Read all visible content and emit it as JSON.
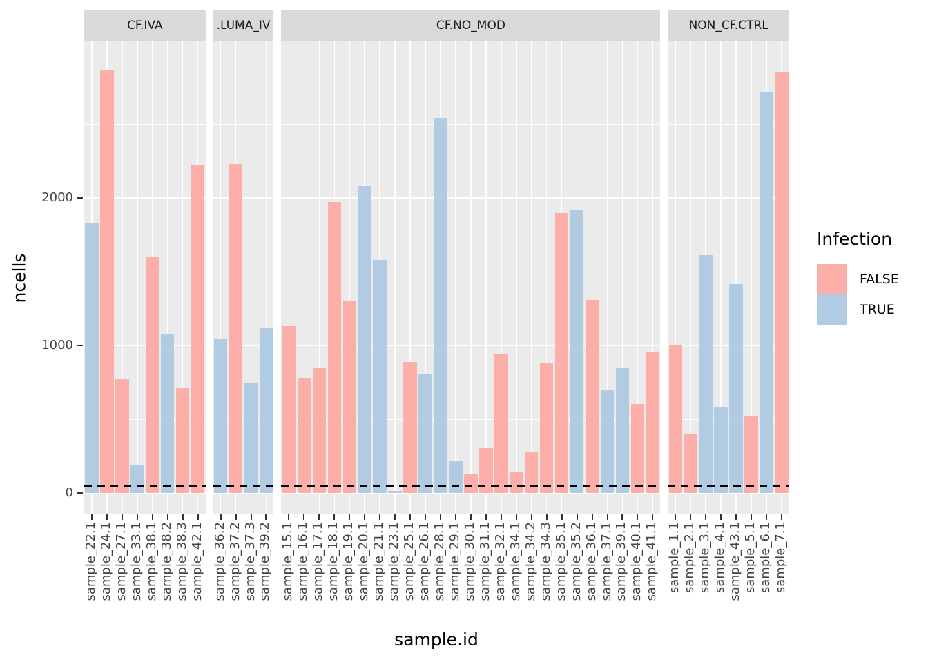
{
  "legend": {
    "title": "Infection",
    "entries": [
      {
        "label": "FALSE",
        "color": "#FBAFA8"
      },
      {
        "label": "TRUE",
        "color": "#B1CBE2"
      }
    ]
  },
  "colors": {
    "false_bar": "#FBAFA8",
    "true_bar": "#B1CBE2",
    "panel_bg": "#EBEBEB",
    "strip_bg": "#D9D9D9",
    "grid": "#FFFFFF",
    "axis_text": "#444444",
    "threshold_line": "#000000"
  },
  "chart_data": {
    "type": "bar",
    "title": "",
    "xlabel": "sample.id",
    "ylabel": "ncells",
    "yticks": [
      0,
      1000,
      2000
    ],
    "minor_gridlines": [
      500,
      1500,
      2500
    ],
    "ylim": [
      -140,
      3065
    ],
    "threshold_dashed_line_y": 50,
    "grid": true,
    "legend_position": "right",
    "legend_title": "Infection",
    "facets": [
      {
        "label": "CF.IVA",
        "bars": [
          {
            "sample": "sample_22.1",
            "ncells": 1830,
            "infection": "TRUE"
          },
          {
            "sample": "sample_24.1",
            "ncells": 2870,
            "infection": "FALSE"
          },
          {
            "sample": "sample_27.1",
            "ncells": 770,
            "infection": "FALSE"
          },
          {
            "sample": "sample_33.1",
            "ncells": 185,
            "infection": "TRUE"
          },
          {
            "sample": "sample_38.1",
            "ncells": 1600,
            "infection": "FALSE"
          },
          {
            "sample": "sample_38.2",
            "ncells": 1080,
            "infection": "TRUE"
          },
          {
            "sample": "sample_38.3",
            "ncells": 710,
            "infection": "FALSE"
          },
          {
            "sample": "sample_42.1",
            "ncells": 2220,
            "infection": "FALSE"
          }
        ]
      },
      {
        "label": ".LUMA_IV",
        "bars": [
          {
            "sample": "sample_36.2",
            "ncells": 1040,
            "infection": "TRUE"
          },
          {
            "sample": "sample_37.2",
            "ncells": 2230,
            "infection": "FALSE"
          },
          {
            "sample": "sample_37.3",
            "ncells": 750,
            "infection": "TRUE"
          },
          {
            "sample": "sample_39.2",
            "ncells": 1120,
            "infection": "TRUE"
          }
        ]
      },
      {
        "label": "CF.NO_MOD",
        "bars": [
          {
            "sample": "sample_15.1",
            "ncells": 1130,
            "infection": "FALSE"
          },
          {
            "sample": "sample_16.1",
            "ncells": 780,
            "infection": "FALSE"
          },
          {
            "sample": "sample_17.1",
            "ncells": 850,
            "infection": "FALSE"
          },
          {
            "sample": "sample_18.1",
            "ncells": 1970,
            "infection": "FALSE"
          },
          {
            "sample": "sample_19.1",
            "ncells": 1300,
            "infection": "FALSE"
          },
          {
            "sample": "sample_20.1",
            "ncells": 2080,
            "infection": "TRUE"
          },
          {
            "sample": "sample_21.1",
            "ncells": 1580,
            "infection": "TRUE"
          },
          {
            "sample": "sample_23.1",
            "ncells": 15,
            "infection": "TRUE"
          },
          {
            "sample": "sample_25.1",
            "ncells": 890,
            "infection": "FALSE"
          },
          {
            "sample": "sample_26.1",
            "ncells": 810,
            "infection": "TRUE"
          },
          {
            "sample": "sample_28.1",
            "ncells": 2540,
            "infection": "TRUE"
          },
          {
            "sample": "sample_29.1",
            "ncells": 220,
            "infection": "TRUE"
          },
          {
            "sample": "sample_30.1",
            "ncells": 125,
            "infection": "FALSE"
          },
          {
            "sample": "sample_31.1",
            "ncells": 310,
            "infection": "FALSE"
          },
          {
            "sample": "sample_32.1",
            "ncells": 940,
            "infection": "FALSE"
          },
          {
            "sample": "sample_34.1",
            "ncells": 145,
            "infection": "FALSE"
          },
          {
            "sample": "sample_34.2",
            "ncells": 275,
            "infection": "FALSE"
          },
          {
            "sample": "sample_34.3",
            "ncells": 880,
            "infection": "FALSE"
          },
          {
            "sample": "sample_35.1",
            "ncells": 1895,
            "infection": "FALSE"
          },
          {
            "sample": "sample_35.2",
            "ncells": 1920,
            "infection": "TRUE"
          },
          {
            "sample": "sample_36.1",
            "ncells": 1310,
            "infection": "FALSE"
          },
          {
            "sample": "sample_37.1",
            "ncells": 700,
            "infection": "TRUE"
          },
          {
            "sample": "sample_39.1",
            "ncells": 850,
            "infection": "TRUE"
          },
          {
            "sample": "sample_40.1",
            "ncells": 605,
            "infection": "FALSE"
          },
          {
            "sample": "sample_41.1",
            "ncells": 960,
            "infection": "FALSE"
          }
        ]
      },
      {
        "label": "NON_CF.CTRL",
        "bars": [
          {
            "sample": "sample_1.1",
            "ncells": 1000,
            "infection": "FALSE"
          },
          {
            "sample": "sample_2.1",
            "ncells": 400,
            "infection": "FALSE"
          },
          {
            "sample": "sample_3.1",
            "ncells": 1610,
            "infection": "TRUE"
          },
          {
            "sample": "sample_4.1",
            "ncells": 585,
            "infection": "TRUE"
          },
          {
            "sample": "sample_43.1",
            "ncells": 1415,
            "infection": "TRUE"
          },
          {
            "sample": "sample_5.1",
            "ncells": 525,
            "infection": "FALSE"
          },
          {
            "sample": "sample_6.1",
            "ncells": 2720,
            "infection": "TRUE"
          },
          {
            "sample": "sample_7.1",
            "ncells": 2850,
            "infection": "FALSE"
          }
        ]
      }
    ]
  }
}
